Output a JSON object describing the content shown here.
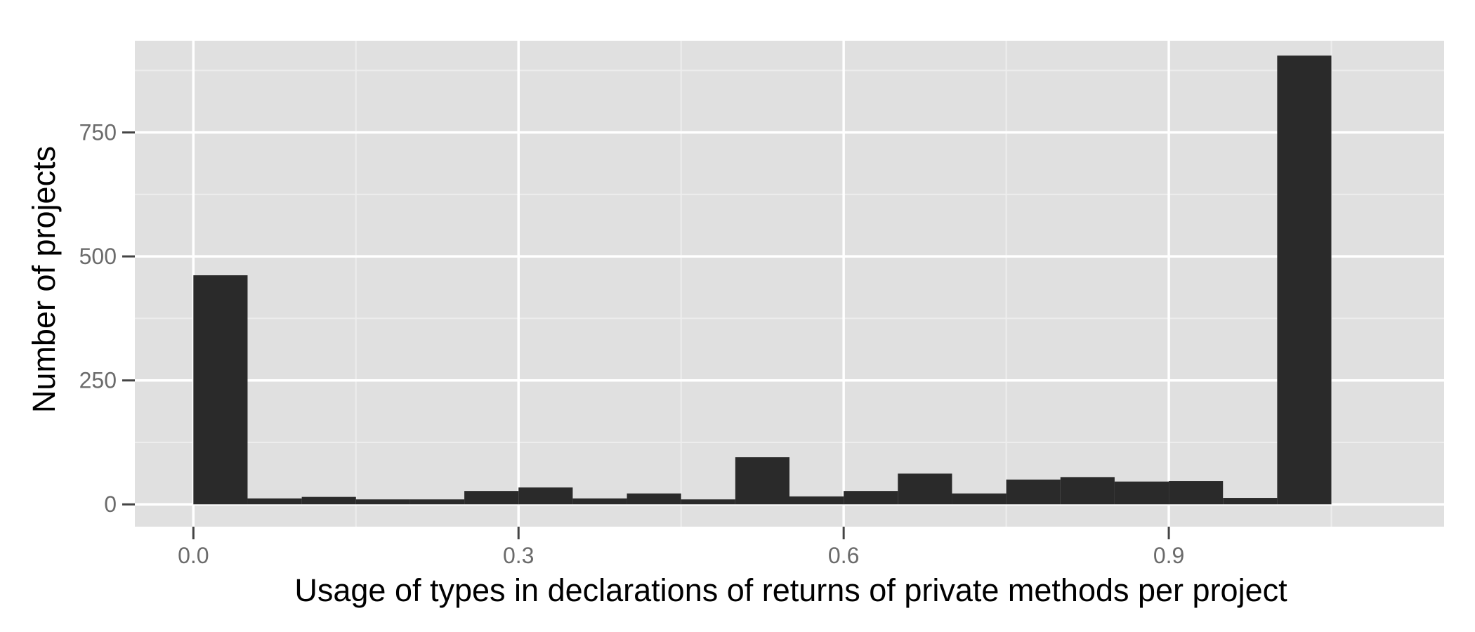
{
  "chart_data": {
    "type": "bar",
    "xlabel": "Usage of types in declarations of returns of private methods per project",
    "ylabel": "Number of projects",
    "xlim": [
      -0.054,
      1.154
    ],
    "ylim": [
      -45,
      935
    ],
    "x_ticks": [
      {
        "value": 0.0,
        "label": "0.0"
      },
      {
        "value": 0.3,
        "label": "0.3"
      },
      {
        "value": 0.6,
        "label": "0.6"
      },
      {
        "value": 0.9,
        "label": "0.9"
      }
    ],
    "y_ticks": [
      {
        "value": 0,
        "label": "0"
      },
      {
        "value": 250,
        "label": "250"
      },
      {
        "value": 500,
        "label": "500"
      },
      {
        "value": 750,
        "label": "750"
      }
    ],
    "bin_width": 0.05,
    "bins": [
      {
        "x0": 0.0,
        "x1": 0.05,
        "count": 462
      },
      {
        "x0": 0.05,
        "x1": 0.1,
        "count": 12
      },
      {
        "x0": 0.1,
        "x1": 0.15,
        "count": 15
      },
      {
        "x0": 0.15,
        "x1": 0.2,
        "count": 10
      },
      {
        "x0": 0.2,
        "x1": 0.25,
        "count": 10
      },
      {
        "x0": 0.25,
        "x1": 0.3,
        "count": 27
      },
      {
        "x0": 0.3,
        "x1": 0.35,
        "count": 34
      },
      {
        "x0": 0.35,
        "x1": 0.4,
        "count": 12
      },
      {
        "x0": 0.4,
        "x1": 0.45,
        "count": 22
      },
      {
        "x0": 0.45,
        "x1": 0.5,
        "count": 10
      },
      {
        "x0": 0.5,
        "x1": 0.55,
        "count": 95
      },
      {
        "x0": 0.55,
        "x1": 0.6,
        "count": 16
      },
      {
        "x0": 0.6,
        "x1": 0.65,
        "count": 27
      },
      {
        "x0": 0.65,
        "x1": 0.7,
        "count": 62
      },
      {
        "x0": 0.7,
        "x1": 0.75,
        "count": 22
      },
      {
        "x0": 0.75,
        "x1": 0.8,
        "count": 50
      },
      {
        "x0": 0.8,
        "x1": 0.85,
        "count": 55
      },
      {
        "x0": 0.85,
        "x1": 0.9,
        "count": 46
      },
      {
        "x0": 0.9,
        "x1": 0.95,
        "count": 47
      },
      {
        "x0": 0.95,
        "x1": 1.0,
        "count": 13
      },
      {
        "x0": 1.0,
        "x1": 1.05,
        "count": 905
      }
    ],
    "grid": true,
    "legend": "none",
    "colors": {
      "panel": "#e0e0e0",
      "grid_major": "#ffffff",
      "grid_minor": "#ededed",
      "bar": "#2a2a2a",
      "tick_label": "#6b6b6b",
      "axis_title": "#000000"
    }
  }
}
